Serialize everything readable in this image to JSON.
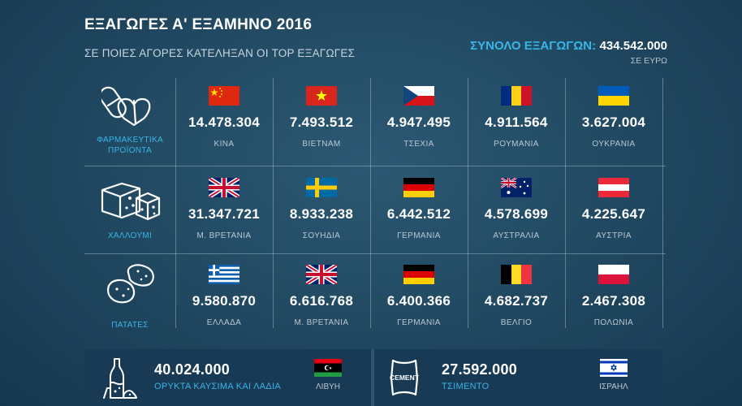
{
  "title": "ΕΞΑΓΩΓΕΣ Α' ΕΞΑΜΗΝΟ 2016",
  "subtitle": "ΣΕ ΠΟΙΕΣ ΑΓΟΡΕΣ ΚΑΤΕΛΗΞΑΝ ΟΙ TOP ΕΞΑΓΩΓΕΣ",
  "total": {
    "label": "ΣΥΝΟΛΟ ΕΞΑΓΩΓΩΝ:",
    "value": "434.542.000",
    "unit": "ΣΕ ΕΥΡΩ"
  },
  "rows": [
    {
      "category": "ΦΑΡΜΑΚΕΥΤΙΚΑ ΠΡΟΪΟΝΤΑ",
      "icon": "pills-icon",
      "cells": [
        {
          "value": "14.478.304",
          "country": "ΚΙΝΑ",
          "flag": "china"
        },
        {
          "value": "7.493.512",
          "country": "ΒΙΕΤΝΑΜ",
          "flag": "vietnam"
        },
        {
          "value": "4.947.495",
          "country": "ΤΣΕΧΙΑ",
          "flag": "czech"
        },
        {
          "value": "4.911.564",
          "country": "ΡΟΥΜΑΝΙΑ",
          "flag": "romania"
        },
        {
          "value": "3.627.004",
          "country": "ΟΥΚΡΑΝΙΑ",
          "flag": "ukraine"
        }
      ]
    },
    {
      "category": "ΧΑΛΛΟΥΜΙ",
      "icon": "cheese-icon",
      "cells": [
        {
          "value": "31.347.721",
          "country": "Μ. ΒΡΕΤΑΝΙΑ",
          "flag": "uk"
        },
        {
          "value": "8.933.238",
          "country": "ΣΟΥΗΔΙΑ",
          "flag": "sweden"
        },
        {
          "value": "6.442.512",
          "country": "ΓΕΡΜΑΝΙΑ",
          "flag": "germany"
        },
        {
          "value": "4.578.699",
          "country": "ΑΥΣΤΡΑΛΙΑ",
          "flag": "australia"
        },
        {
          "value": "4.225.647",
          "country": "ΑΥΣΤΡΙΑ",
          "flag": "austria"
        }
      ]
    },
    {
      "category": "ΠΑΤΑΤΕΣ",
      "icon": "potatoes-icon",
      "cells": [
        {
          "value": "9.580.870",
          "country": "ΕΛΛΑΔΑ",
          "flag": "greece"
        },
        {
          "value": "6.616.768",
          "country": "Μ. ΒΡΕΤΑΝΙΑ",
          "flag": "uk"
        },
        {
          "value": "6.400.366",
          "country": "ΓΕΡΜΑΝΙΑ",
          "flag": "germany"
        },
        {
          "value": "4.682.737",
          "country": "ΒΕΛΓΙΟ",
          "flag": "belgium"
        },
        {
          "value": "2.467.308",
          "country": "ΠΟΛΩΝΙΑ",
          "flag": "poland"
        }
      ]
    }
  ],
  "bottom": [
    {
      "value": "40.024.000",
      "label": "ΟΡΥΚΤΑ ΚΑΥΣΙΜΑ ΚΑΙ ΛΑΔΙΑ",
      "country": "ΛΙΒΥΗ",
      "flag": "libya",
      "icon": "oil-bottles-icon"
    },
    {
      "value": "27.592.000",
      "label": "ΤΣΙΜΕΝΤΟ",
      "country": "ΙΣΡΑΗΛ",
      "flag": "israel",
      "icon": "cement-bag-icon",
      "icon_text": "CEMENT"
    }
  ],
  "colors": {
    "accent": "#38b6e8",
    "text": "#ffffff",
    "muted": "#b9c8d1",
    "background": "#224a63",
    "bottom_band": "#183a54"
  }
}
